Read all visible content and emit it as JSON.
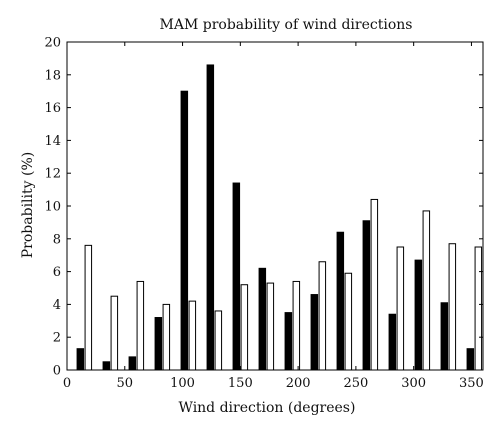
{
  "chart_data": {
    "type": "bar",
    "title": "MAM probability of wind directions",
    "xlabel": "Wind direction (degrees)",
    "ylabel": "Probability (%)",
    "xlim": [
      0,
      360
    ],
    "ylim": [
      0,
      20
    ],
    "xticks": [
      0,
      50,
      100,
      150,
      200,
      250,
      300,
      350
    ],
    "yticks": [
      0,
      2,
      4,
      6,
      8,
      10,
      12,
      14,
      16,
      18,
      20
    ],
    "grid": false,
    "x": [
      15,
      37.5,
      60,
      82.5,
      105,
      127.5,
      150,
      172.5,
      195,
      217.5,
      240,
      262.5,
      285,
      307.5,
      330,
      352.5
    ],
    "series": [
      {
        "fill": "#000000",
        "values": [
          1.3,
          0.5,
          0.8,
          3.2,
          17.0,
          18.6,
          11.4,
          6.2,
          3.5,
          4.6,
          8.4,
          9.1,
          3.4,
          6.7,
          4.1,
          1.3
        ]
      },
      {
        "fill": "#ffffff",
        "values": [
          7.6,
          4.5,
          5.4,
          4.0,
          4.2,
          3.6,
          5.2,
          5.3,
          5.4,
          6.6,
          5.9,
          10.4,
          7.5,
          9.7,
          7.7,
          7.5
        ]
      }
    ]
  }
}
